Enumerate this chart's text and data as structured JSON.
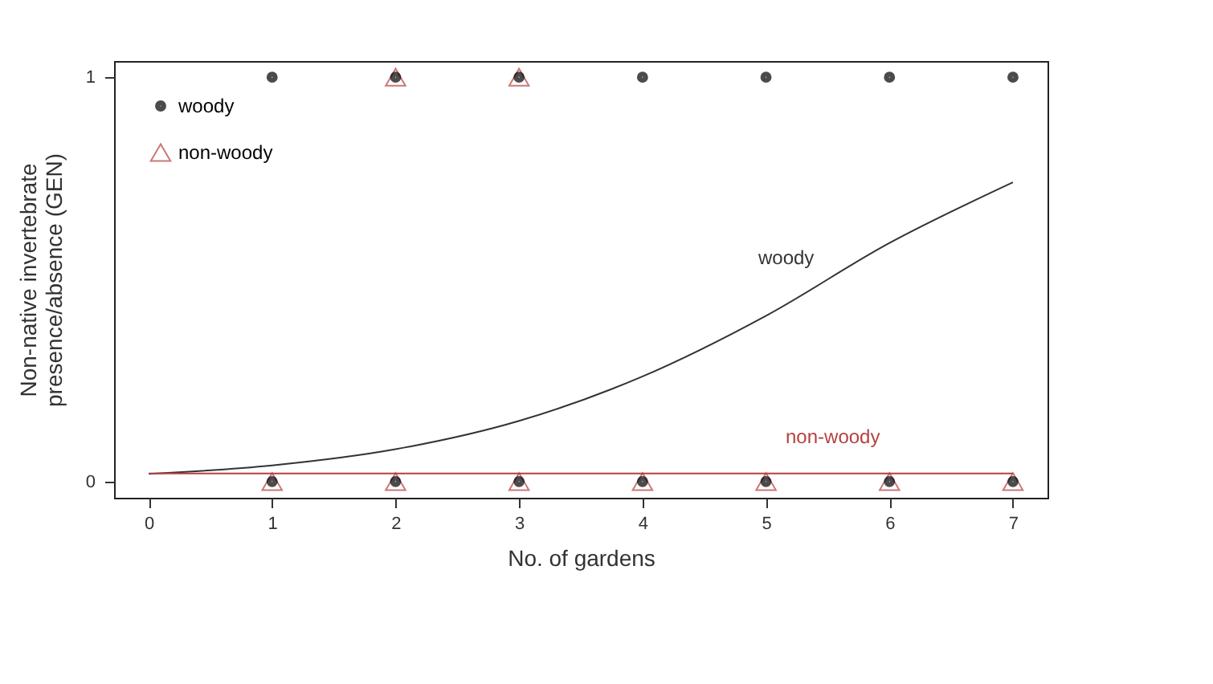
{
  "chart_data": {
    "type": "scatter",
    "xlabel": "No. of gardens",
    "ylabel": "Non-native invertebrate\npresence/absence (GEN)",
    "xlim": [
      -0.28,
      7.28
    ],
    "ylim": [
      -0.04,
      1.04
    ],
    "xticks": [
      0,
      1,
      2,
      3,
      4,
      5,
      6,
      7
    ],
    "yticks": [
      0,
      1
    ],
    "legend": "top left",
    "series": [
      {
        "name": "woody",
        "marker": "circle",
        "color": "#000000",
        "x": [
          1,
          2,
          3,
          4,
          5,
          6,
          7,
          1,
          2,
          3,
          4,
          5,
          6,
          7
        ],
        "values": [
          1,
          1,
          1,
          1,
          1,
          1,
          1,
          0,
          0,
          0,
          0,
          0,
          0,
          0
        ]
      },
      {
        "name": "non-woody",
        "marker": "triangle",
        "color": "#b5403f",
        "x": [
          2,
          3,
          1,
          2,
          3,
          4,
          5,
          6,
          7
        ],
        "values": [
          1,
          1,
          0,
          0,
          0,
          0,
          0,
          0,
          0
        ]
      },
      {
        "type": "line",
        "color": "#333333",
        "x": [
          0,
          1,
          2,
          3,
          4,
          5,
          6,
          7
        ],
        "values": [
          0.019,
          0.04,
          0.08,
          0.15,
          0.26,
          0.41,
          0.59,
          0.74
        ]
      },
      {
        "type": "line",
        "color": "#b5403f",
        "x": [
          0,
          7
        ],
        "values": [
          0.02,
          0.02
        ]
      }
    ],
    "annotations": [
      "woody",
      "non-woody"
    ]
  }
}
